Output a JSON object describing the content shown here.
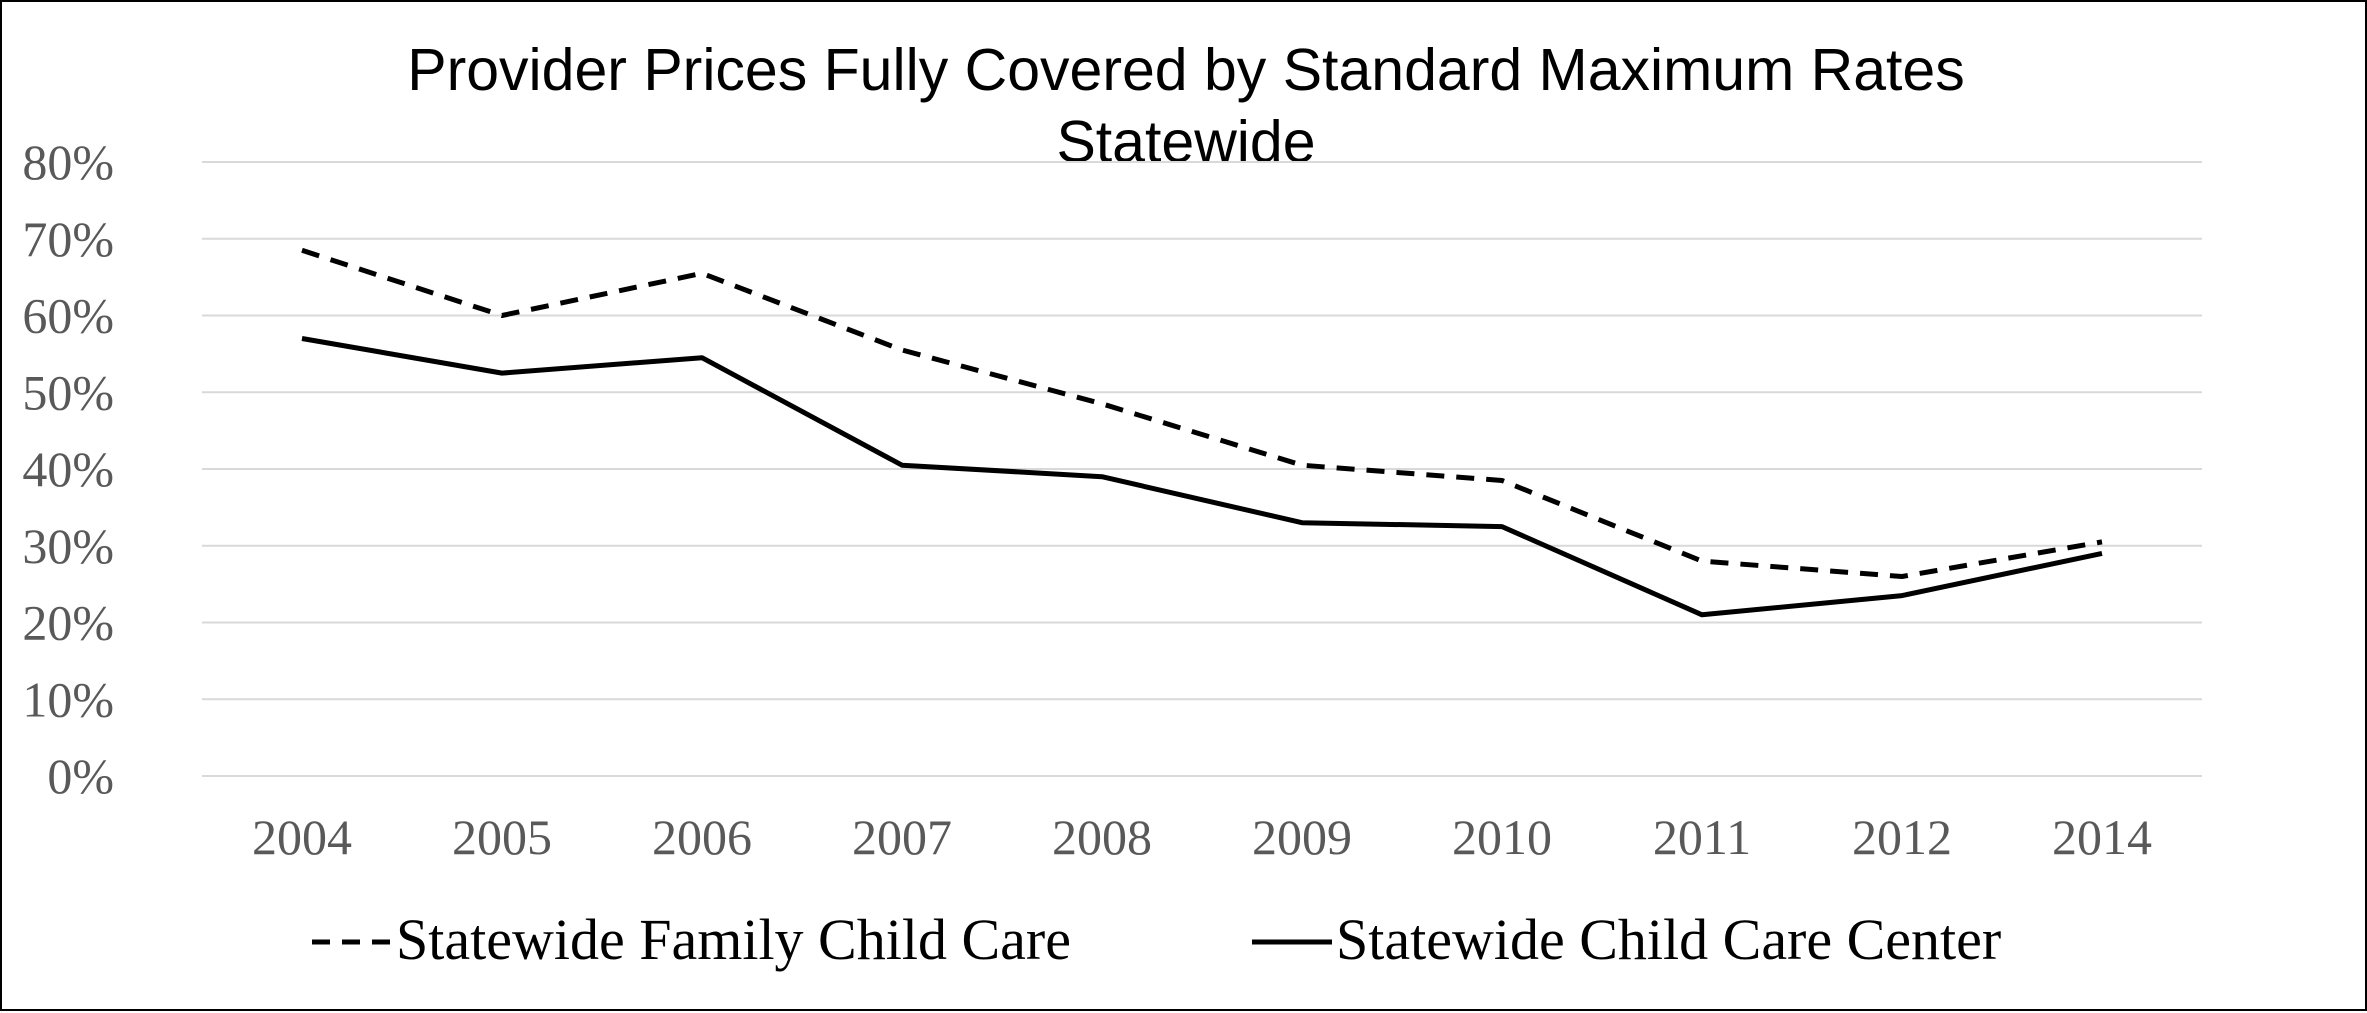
{
  "chart_data": {
    "type": "line",
    "title": "Provider Prices Fully Covered by Standard Maximum Rates",
    "subtitle": "Statewide",
    "xlabel": "",
    "ylabel": "",
    "categories": [
      "2004",
      "2005",
      "2006",
      "2007",
      "2008",
      "2009",
      "2010",
      "2011",
      "2012",
      "2014"
    ],
    "y_ticks": [
      "0%",
      "10%",
      "20%",
      "30%",
      "40%",
      "50%",
      "60%",
      "70%",
      "80%"
    ],
    "y_tick_values": [
      0,
      10,
      20,
      30,
      40,
      50,
      60,
      70,
      80
    ],
    "ylim": [
      0,
      80
    ],
    "grid": true,
    "legend_position": "bottom",
    "series": [
      {
        "name": "Statewide Family Child Care",
        "style": "dashed",
        "color": "#000000",
        "values": [
          68.5,
          60,
          65.5,
          55.5,
          48.5,
          40.5,
          38.5,
          28,
          26,
          30.5
        ]
      },
      {
        "name": "Statewide Child Care Center",
        "style": "solid",
        "color": "#000000",
        "values": [
          57,
          52.5,
          54.5,
          40.5,
          39,
          33,
          32.5,
          21,
          23.5,
          29
        ]
      }
    ]
  }
}
